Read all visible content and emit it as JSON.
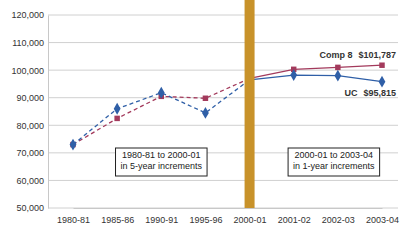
{
  "chart_data": {
    "type": "line",
    "categories": [
      "1980-81",
      "1985-86",
      "1990-91",
      "1995-96",
      "2000-01",
      "2001-02",
      "2002-03",
      "2003-04"
    ],
    "series": [
      {
        "name": "Comp 8",
        "color": "#a33a5c",
        "marker": "square",
        "line_style": "dashed",
        "values": [
          73000,
          82500,
          90500,
          89800,
          97000,
          100300,
          101000,
          101787
        ],
        "end_label": "$101,787"
      },
      {
        "name": "UC",
        "color": "#2f5fa7",
        "marker": "diamond",
        "line_style": "dashed",
        "values": [
          73000,
          86000,
          91800,
          84500,
          96500,
          98200,
          98000,
          95815
        ],
        "end_label": "$95,815"
      }
    ],
    "annotations": [
      [
        "1980-81 to 2000-01",
        "in 5-year increments"
      ],
      [
        "2000-01 to 2003-04",
        "in 1-year increments"
      ]
    ],
    "ylim": [
      50000,
      120000
    ],
    "yticks": [
      {
        "value": 50000,
        "label": "50,000"
      },
      {
        "value": 60000,
        "label": "60,000"
      },
      {
        "value": 70000,
        "label": "70,000"
      },
      {
        "value": 80000,
        "label": "80,000"
      },
      {
        "value": 90000,
        "label": "90,000"
      },
      {
        "value": 100000,
        "label": "100,000"
      },
      {
        "value": 110000,
        "label": "110,000"
      },
      {
        "value": 120000,
        "label": "120,000"
      }
    ],
    "grid": true
  }
}
